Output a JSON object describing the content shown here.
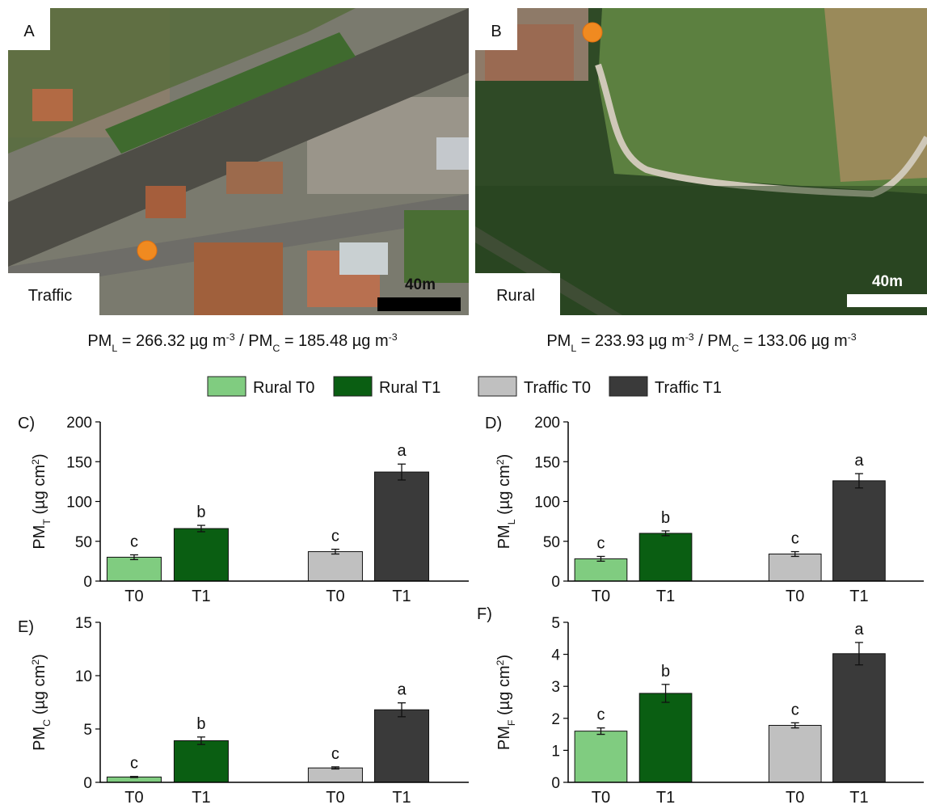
{
  "images": [
    {
      "label": "A",
      "site": "Traffic",
      "scale": "40m"
    },
    {
      "label": "B",
      "site": "Rural",
      "scale": "40m"
    }
  ],
  "captions": [
    {
      "parts": [
        {
          "text": "PM"
        },
        {
          "sub": "L"
        },
        {
          "text": " = 266.32 µg m"
        },
        {
          "sup": "-3"
        },
        {
          "text": " / PM"
        },
        {
          "sub": "C"
        },
        {
          "text": " = 185.48 µg m"
        },
        {
          "sup": "-3"
        }
      ]
    },
    {
      "parts": [
        {
          "text": "PM"
        },
        {
          "sub": "L"
        },
        {
          "text": " = 233.93 µg m"
        },
        {
          "sup": "-3"
        },
        {
          "text": " / PM"
        },
        {
          "sub": "C"
        },
        {
          "text": " = 133.06 µg m"
        },
        {
          "sup": "-3"
        }
      ]
    }
  ],
  "legend": [
    {
      "name": "Rural T0",
      "color": "#80cc80"
    },
    {
      "name": "Rural T1",
      "color": "#0a5e12"
    },
    {
      "name": "Traffic T0",
      "color": "#c0c0c0"
    },
    {
      "name": "Traffic T1",
      "color": "#3a3a3a"
    }
  ],
  "chart_data": [
    {
      "type": "bar",
      "panel": "C)",
      "ylabel": [
        {
          "text": "PM"
        },
        {
          "sub": "T"
        },
        {
          "text": " (µg cm"
        },
        {
          "sup": "2"
        },
        {
          "text": ")"
        }
      ],
      "categories": [
        "T0",
        "T1",
        "T0",
        "T1"
      ],
      "values": [
        30,
        66,
        37,
        137
      ],
      "errors": [
        3,
        4,
        3,
        10
      ],
      "annotations": [
        "c",
        "b",
        "c",
        "a"
      ],
      "colors": [
        "#80cc80",
        "#0a5e12",
        "#c0c0c0",
        "#3a3a3a"
      ],
      "ylim": [
        0,
        200
      ],
      "yticks": [
        0,
        50,
        100,
        150,
        200
      ]
    },
    {
      "type": "bar",
      "panel": "D)",
      "ylabel": [
        {
          "text": "PM"
        },
        {
          "sub": "L"
        },
        {
          "text": " (µg cm"
        },
        {
          "sup": "2"
        },
        {
          "text": ")"
        }
      ],
      "categories": [
        "T0",
        "T1",
        "T0",
        "T1"
      ],
      "values": [
        28,
        60,
        34,
        126
      ],
      "errors": [
        3,
        3,
        3,
        9
      ],
      "annotations": [
        "c",
        "b",
        "c",
        "a"
      ],
      "colors": [
        "#80cc80",
        "#0a5e12",
        "#c0c0c0",
        "#3a3a3a"
      ],
      "ylim": [
        0,
        200
      ],
      "yticks": [
        0,
        50,
        100,
        150,
        200
      ]
    },
    {
      "type": "bar",
      "panel": "E)",
      "ylabel": [
        {
          "text": "PM"
        },
        {
          "sub": "C"
        },
        {
          "text": " (µg cm"
        },
        {
          "sup": "2"
        },
        {
          "text": ")"
        }
      ],
      "categories": [
        "T0",
        "T1",
        "T0",
        "T1"
      ],
      "values": [
        0.5,
        3.9,
        1.35,
        6.8
      ],
      "errors": [
        0.05,
        0.35,
        0.1,
        0.65
      ],
      "annotations": [
        "c",
        "b",
        "c",
        "a"
      ],
      "colors": [
        "#80cc80",
        "#0a5e12",
        "#c0c0c0",
        "#3a3a3a"
      ],
      "ylim": [
        0,
        15
      ],
      "yticks": [
        0,
        5,
        10,
        15
      ]
    },
    {
      "type": "bar",
      "panel": "F)",
      "ylabel": [
        {
          "text": "PM"
        },
        {
          "sub": "F"
        },
        {
          "text": " (µg cm"
        },
        {
          "sup": "2"
        },
        {
          "text": ")"
        }
      ],
      "categories": [
        "T0",
        "T1",
        "T0",
        "T1"
      ],
      "values": [
        1.6,
        2.78,
        1.78,
        4.02
      ],
      "errors": [
        0.1,
        0.28,
        0.08,
        0.35
      ],
      "annotations": [
        "c",
        "b",
        "c",
        "a"
      ],
      "colors": [
        "#80cc80",
        "#0a5e12",
        "#c0c0c0",
        "#3a3a3a"
      ],
      "ylim": [
        0,
        5
      ],
      "yticks": [
        0,
        1,
        2,
        3,
        4,
        5
      ]
    }
  ]
}
